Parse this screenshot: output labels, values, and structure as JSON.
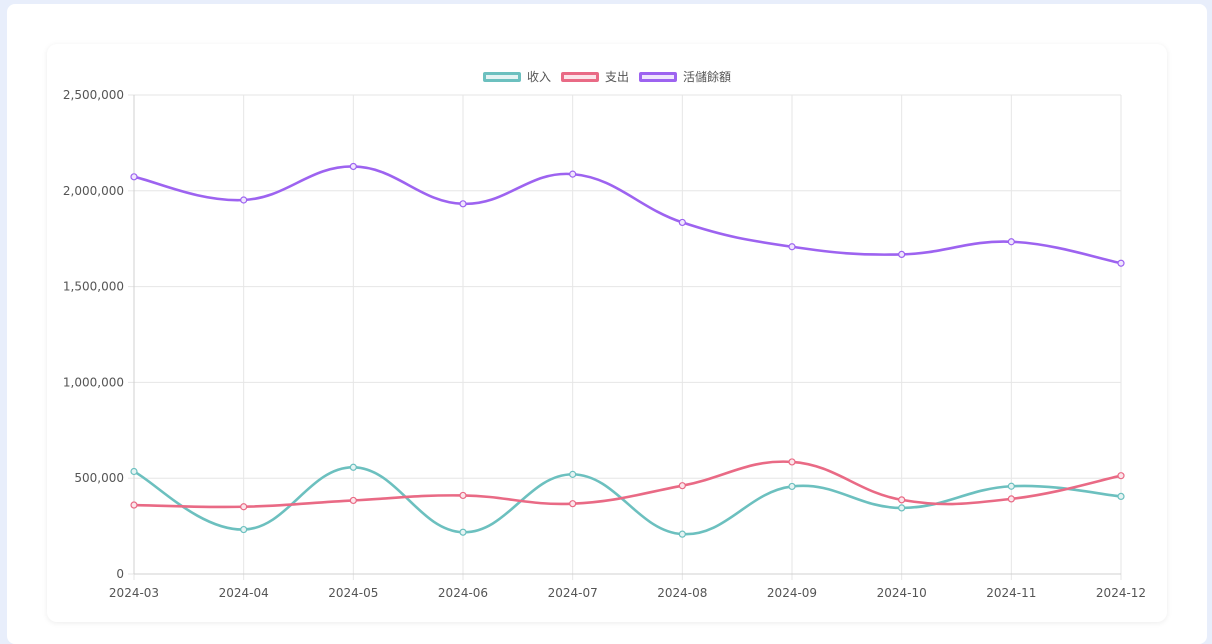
{
  "chart_data": {
    "type": "line",
    "categories": [
      "2024-03",
      "2024-04",
      "2024-05",
      "2024-06",
      "2024-07",
      "2024-08",
      "2024-09",
      "2024-10",
      "2024-11",
      "2024-12"
    ],
    "series": [
      {
        "name": "收入",
        "color": "#6cc0bf",
        "fill": "#e5f3f3",
        "values": [
          535000,
          232000,
          557000,
          218000,
          520000,
          208000,
          457000,
          345000,
          458000,
          405000
        ]
      },
      {
        "name": "支出",
        "color": "#e96a85",
        "fill": "#fbe5ea",
        "values": [
          360000,
          351000,
          384000,
          410000,
          367000,
          461000,
          585000,
          387000,
          392000,
          513000
        ]
      },
      {
        "name": "活儲餘額",
        "color": "#9d63f0",
        "fill": "#efe6fd",
        "values": [
          2073000,
          1952000,
          2127000,
          1932000,
          2087000,
          1835000,
          1708000,
          1668000,
          1734000,
          1622000
        ]
      }
    ],
    "ylim": [
      0,
      2500000
    ],
    "yticks": [
      "0",
      "500,000",
      "1,000,000",
      "1,500,000",
      "2,000,000",
      "2,500,000"
    ],
    "ytick_values": [
      0,
      500000,
      1000000,
      1500000,
      2000000,
      2500000
    ],
    "grid": true,
    "legend_position": "top-center"
  }
}
